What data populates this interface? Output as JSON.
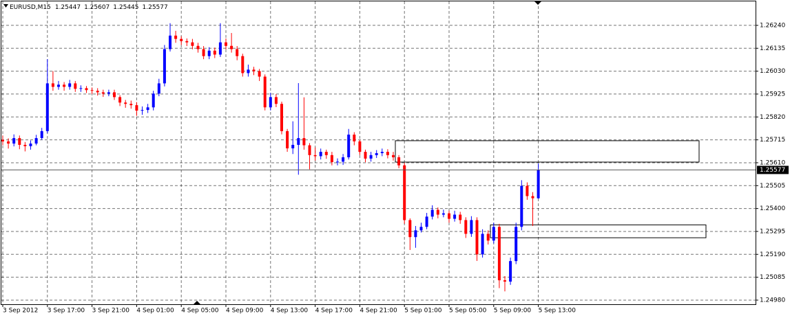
{
  "chart_data": {
    "type": "candlestick",
    "title": "EURUSD,M15",
    "header_values": [
      1.25447,
      1.25607,
      1.25445,
      1.25577
    ],
    "up_color": "#0000ff",
    "down_color": "#ff0000",
    "grid": true,
    "ylim": [
      1.24961,
      1.2635
    ],
    "yticks": [
      {
        "value": 1.2624,
        "label": "1.26240"
      },
      1.26135,
      {
        "value": 1.2603,
        "label": "1.26030"
      },
      1.25925,
      {
        "value": 1.2582,
        "label": "1.25820"
      },
      1.25715,
      {
        "value": 1.2561,
        "label": "1.25610"
      },
      1.25505,
      {
        "value": 1.254,
        "label": "1.25400"
      },
      1.25295,
      {
        "value": 1.2519,
        "label": "1.25190"
      },
      1.25085,
      {
        "value": 1.2498,
        "label": "1.24980"
      }
    ],
    "xticks": [
      {
        "value": 0,
        "label": "3 Sep 2012"
      },
      {
        "value": 8,
        "label": "3 Sep 17:00"
      },
      {
        "value": 16,
        "label": "3 Sep 21:00"
      },
      {
        "value": 24,
        "label": "4 Sep 01:00"
      },
      {
        "value": 32,
        "label": "4 Sep 05:00"
      },
      {
        "value": 40,
        "label": "4 Sep 09:00"
      },
      {
        "value": 48,
        "label": "4 Sep 13:00"
      },
      {
        "value": 56,
        "label": "4 Sep 17:00"
      },
      {
        "value": 64,
        "label": "4 Sep 21:00"
      },
      {
        "value": 72,
        "label": "5 Sep 01:00"
      },
      {
        "value": 80,
        "label": "5 Sep 05:00"
      },
      {
        "value": 88,
        "label": "5 Sep 09:00"
      },
      {
        "value": 96,
        "label": "5 Sep 13:00"
      }
    ],
    "zones": [
      {
        "high": 1.25711,
        "low": 1.25613
      },
      {
        "high": 1.25325,
        "low": 1.25266
      }
    ],
    "open": [
      1.25715,
      1.25708,
      1.25698,
      1.25723,
      1.25692,
      1.25686,
      1.25698,
      1.25723,
      1.25755,
      1.25974,
      1.25958,
      1.25968,
      1.25958,
      1.25974,
      1.25949,
      1.25952,
      1.25943,
      1.2594,
      1.25933,
      1.25927,
      1.25933,
      1.25911,
      1.25886,
      1.2588,
      1.25874,
      1.25849,
      1.25852,
      1.25864,
      1.25927,
      1.25974,
      1.26131,
      1.26193,
      1.26178,
      1.26168,
      1.26162,
      1.26146,
      1.26131,
      1.26099,
      1.26124,
      1.26106,
      1.26162,
      1.26146,
      1.26131,
      1.26099,
      1.26021,
      1.26037,
      1.2603,
      1.26005,
      1.25864,
      1.25911,
      1.2588,
      1.25755,
      1.25676,
      1.25692,
      1.25723,
      1.2569,
      1.25645,
      1.2564,
      1.2566,
      1.25645,
      1.25613,
      1.25615,
      1.25635,
      1.25739,
      1.25708,
      1.2566,
      1.25629,
      1.25645,
      1.25654,
      1.2566,
      1.25645,
      1.25635,
      1.25598,
      1.25347,
      1.25269,
      1.253,
      1.25316,
      1.25363,
      1.25394,
      1.25372,
      1.25378,
      1.25353,
      1.25372,
      1.25347,
      1.25284,
      1.25347,
      1.2519,
      1.25284,
      1.25253,
      1.25316,
      1.25071,
      1.25065,
      1.25159,
      1.25316,
      1.25504,
      1.25457,
      1.25447
    ],
    "high": [
      1.25735,
      1.25722,
      1.2574,
      1.25735,
      1.25705,
      1.25712,
      1.25738,
      1.2577,
      1.26085,
      1.2603,
      1.25985,
      1.2598,
      1.2599,
      1.25985,
      1.25965,
      1.25962,
      1.25955,
      1.25952,
      1.25945,
      1.25945,
      1.25945,
      1.2592,
      1.25898,
      1.25895,
      1.25888,
      1.25868,
      1.2588,
      1.2594,
      1.25995,
      1.2615,
      1.2625,
      1.26215,
      1.2619,
      1.2618,
      1.26178,
      1.2616,
      1.26145,
      1.2614,
      1.26138,
      1.2625,
      1.2618,
      1.26205,
      1.26145,
      1.2611,
      1.2606,
      1.2605,
      1.2604,
      1.26015,
      1.2593,
      1.25925,
      1.2589,
      1.25765,
      1.258,
      1.25975,
      1.2591,
      1.257,
      1.2568,
      1.25675,
      1.2567,
      1.2566,
      1.2563,
      1.2565,
      1.25765,
      1.2575,
      1.25715,
      1.2567,
      1.2566,
      1.25668,
      1.25675,
      1.25672,
      1.2566,
      1.25645,
      1.2561,
      1.25355,
      1.2532,
      1.25335,
      1.2538,
      1.25415,
      1.25405,
      1.25395,
      1.2539,
      1.2539,
      1.25385,
      1.2536,
      1.25365,
      1.2536,
      1.25305,
      1.253,
      1.25335,
      1.2533,
      1.2509,
      1.25175,
      1.25335,
      1.2553,
      1.2552,
      1.25475,
      1.25607
    ],
    "low": [
      1.2569,
      1.25675,
      1.25685,
      1.25672,
      1.25662,
      1.2567,
      1.2569,
      1.25715,
      1.25745,
      1.2594,
      1.25945,
      1.2594,
      1.25945,
      1.25935,
      1.25935,
      1.2593,
      1.25925,
      1.25918,
      1.25912,
      1.25915,
      1.25898,
      1.2587,
      1.25862,
      1.25858,
      1.25825,
      1.2583,
      1.25838,
      1.2585,
      1.25915,
      1.2596,
      1.2612,
      1.2616,
      1.2615,
      1.26145,
      1.2613,
      1.26115,
      1.26085,
      1.26085,
      1.2609,
      1.26095,
      1.2613,
      1.26115,
      1.2608,
      1.26005,
      1.26005,
      1.26012,
      1.25985,
      1.2585,
      1.2585,
      1.25865,
      1.2574,
      1.2566,
      1.2565,
      1.25555,
      1.2567,
      1.2558,
      1.2562,
      1.25625,
      1.25628,
      1.25598,
      1.25598,
      1.256,
      1.25625,
      1.2569,
      1.25645,
      1.25612,
      1.25615,
      1.25632,
      1.2564,
      1.2563,
      1.2562,
      1.25585,
      1.2533,
      1.2521,
      1.2522,
      1.2529,
      1.25305,
      1.2535,
      1.25355,
      1.2536,
      1.25335,
      1.2534,
      1.2533,
      1.25265,
      1.2527,
      1.2516,
      1.25175,
      1.25235,
      1.2524,
      1.25035,
      1.2502,
      1.2505,
      1.25145,
      1.253,
      1.2544,
      1.2532,
      1.25445
    ],
    "close": [
      1.25708,
      1.25698,
      1.25723,
      1.25692,
      1.25686,
      1.25698,
      1.25723,
      1.25755,
      1.25974,
      1.25958,
      1.25968,
      1.25958,
      1.25974,
      1.25949,
      1.25952,
      1.25943,
      1.2594,
      1.25933,
      1.25927,
      1.25933,
      1.25911,
      1.25886,
      1.2588,
      1.25874,
      1.25849,
      1.25852,
      1.25864,
      1.25927,
      1.25974,
      1.26131,
      1.26193,
      1.26178,
      1.26168,
      1.26162,
      1.26146,
      1.26131,
      1.26099,
      1.26124,
      1.26106,
      1.26162,
      1.26146,
      1.26131,
      1.26099,
      1.26021,
      1.26037,
      1.2603,
      1.26005,
      1.25864,
      1.25911,
      1.2588,
      1.25755,
      1.25676,
      1.25692,
      1.25723,
      1.2569,
      1.25645,
      1.2564,
      1.2566,
      1.25645,
      1.25613,
      1.25615,
      1.25635,
      1.25739,
      1.25708,
      1.2566,
      1.25629,
      1.25645,
      1.25654,
      1.2566,
      1.25645,
      1.25635,
      1.25598,
      1.25347,
      1.25269,
      1.253,
      1.25316,
      1.25363,
      1.25394,
      1.25372,
      1.25378,
      1.25353,
      1.25372,
      1.25347,
      1.25284,
      1.25347,
      1.2519,
      1.25284,
      1.25253,
      1.25316,
      1.25071,
      1.25065,
      1.25159,
      1.25316,
      1.25504,
      1.25457,
      1.25447,
      1.25577
    ]
  }
}
